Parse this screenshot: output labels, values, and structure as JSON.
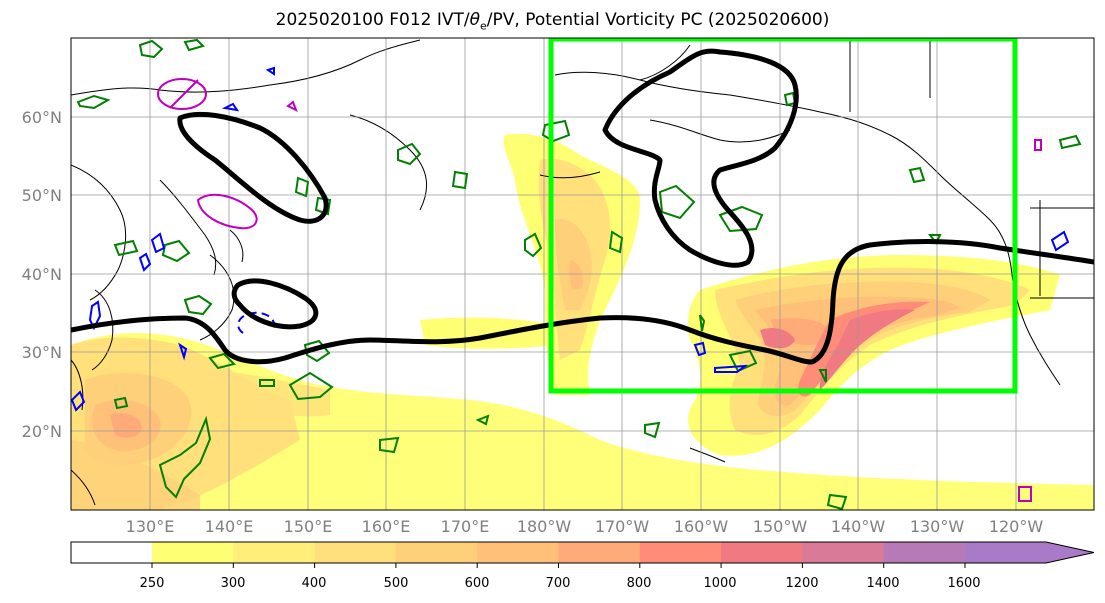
{
  "title": {
    "prefix": "2025020100 F012 IVT/",
    "theta": "θ",
    "theta_sub": "e",
    "suffix": "/PV, Potential Vorticity PC (2025020600)"
  },
  "axes": {
    "lat_labels": [
      "60°N",
      "50°N",
      "40°N",
      "30°N",
      "20°N"
    ],
    "lon_labels": [
      "130°E",
      "140°E",
      "150°E",
      "160°E",
      "170°E",
      "180°W",
      "170°W",
      "160°W",
      "150°W",
      "140°W",
      "130°W",
      "120°W"
    ]
  },
  "colorbar": {
    "ticks": [
      "250",
      "300",
      "400",
      "500",
      "600",
      "700",
      "800",
      "1000",
      "1200",
      "1400",
      "1600"
    ],
    "colors": [
      "#ffff73",
      "#ffef7a",
      "#ffe07a",
      "#ffd07a",
      "#ffc07a",
      "#ffaa78",
      "#ff8c78",
      "#f07a82",
      "#d87a98",
      "#b67ab8",
      "#a87ac8"
    ]
  },
  "colors": {
    "pv_contour": "#000000",
    "box": "#00ff00",
    "theta_positive": "#008000",
    "theta_negative": "#0000ff",
    "magenta": "#c000c0"
  },
  "chart_data": {
    "type": "map",
    "projection": "cylindrical",
    "extent": {
      "lon_min": 120,
      "lon_max": 250,
      "lat_min": 10,
      "lat_max": 70
    },
    "gridlines": true,
    "highlight_box": {
      "lon_min": 180,
      "lon_max": 240,
      "lat_min": 25,
      "lat_max": 70
    },
    "ivt_units_levels": [
      250,
      300,
      400,
      500,
      600,
      700,
      800,
      1000,
      1200,
      1400,
      1600
    ]
  }
}
